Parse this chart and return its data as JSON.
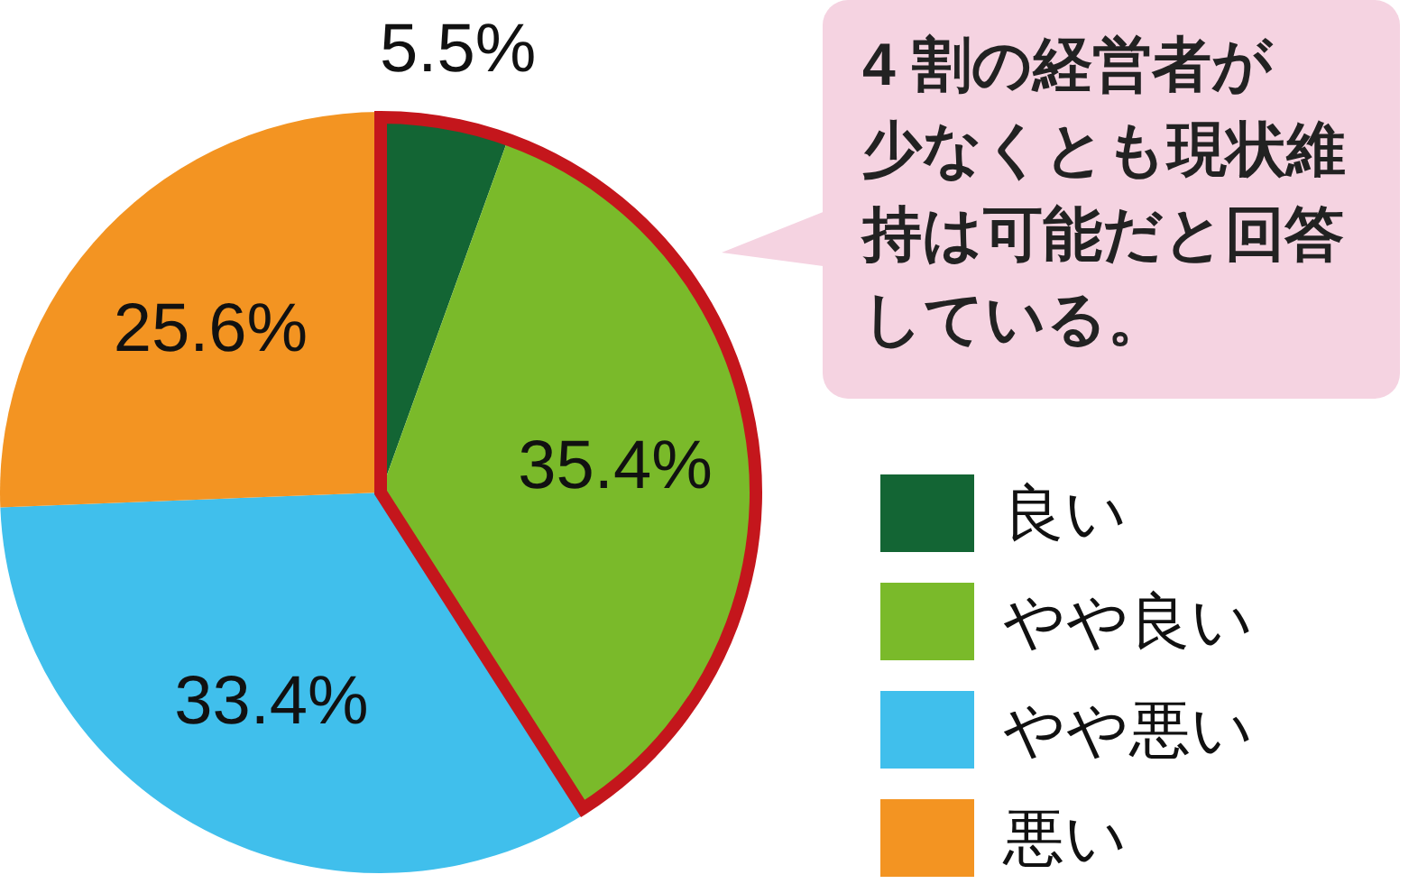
{
  "chart_data": {
    "type": "pie",
    "categories": [
      "良い",
      "やや良い",
      "やや悪い",
      "悪い"
    ],
    "values": [
      5.5,
      35.4,
      33.4,
      25.6
    ],
    "colors": [
      "#136534",
      "#7aba2a",
      "#40bfec",
      "#f39422"
    ],
    "value_labels": [
      "5.5%",
      "35.4%",
      "33.4%",
      "25.6%"
    ],
    "legend": "right",
    "annotations": [
      "4 割の経営者が少なくとも現状維持は可能だと回答している。"
    ]
  }
}
